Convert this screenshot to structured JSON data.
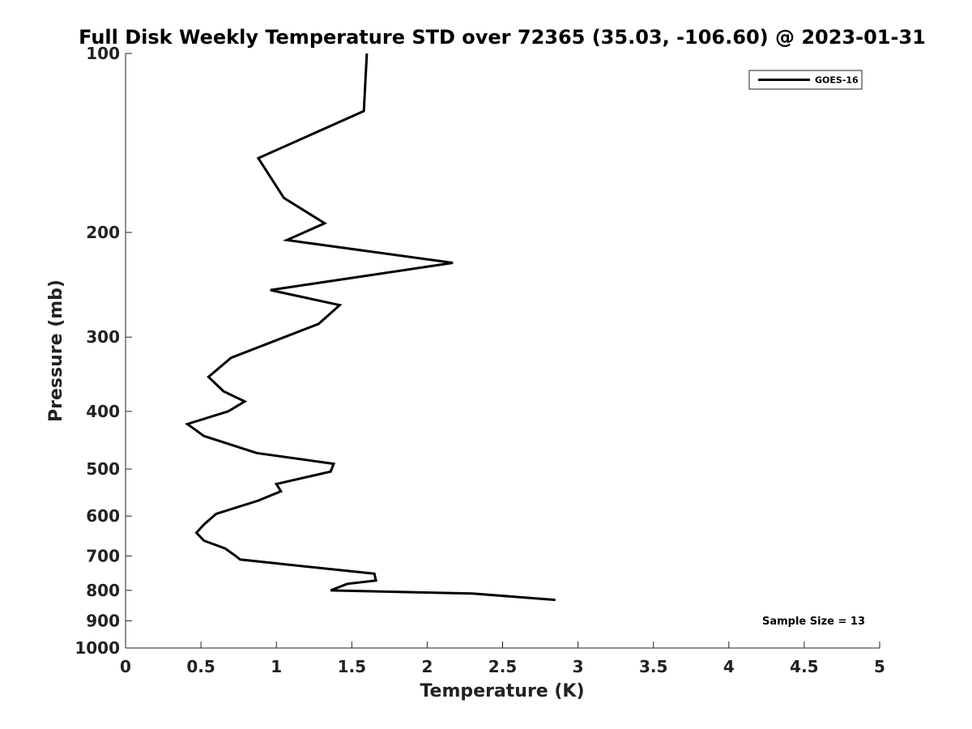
{
  "chart_data": {
    "type": "line",
    "title": "Full Disk Weekly Temperature STD over 72365 (35.03, -106.60) @ 2023-01-31",
    "xlabel": "Temperature (K)",
    "ylabel": "Pressure (mb)",
    "xlim": [
      0,
      5
    ],
    "ylim": [
      100,
      1000
    ],
    "y_scale": "log",
    "y_reversed": true,
    "x_ticks": [
      "0",
      "0.5",
      "1",
      "1.5",
      "2",
      "2.5",
      "3",
      "3.5",
      "4",
      "4.5",
      "5"
    ],
    "y_ticks": [
      "100",
      "200",
      "300",
      "400",
      "500",
      "600",
      "700",
      "800",
      "900",
      "1000"
    ],
    "grid": false,
    "legend": {
      "position": "top-right",
      "entries": [
        "GOES-16"
      ]
    },
    "annotation": "Sample Size = 13",
    "series": [
      {
        "name": "GOES-16",
        "color": "#000000",
        "points": [
          [
            1.6,
            100
          ],
          [
            1.58,
            125
          ],
          [
            0.88,
            150
          ],
          [
            1.05,
            175
          ],
          [
            1.32,
            193
          ],
          [
            1.07,
            206
          ],
          [
            2.17,
            225
          ],
          [
            0.96,
            250
          ],
          [
            1.42,
            265
          ],
          [
            1.28,
            285
          ],
          [
            0.7,
            325
          ],
          [
            0.55,
            350
          ],
          [
            0.65,
            370
          ],
          [
            0.79,
            385
          ],
          [
            0.68,
            400
          ],
          [
            0.41,
            420
          ],
          [
            0.52,
            440
          ],
          [
            0.87,
            470
          ],
          [
            1.38,
            490
          ],
          [
            1.36,
            505
          ],
          [
            1.0,
            530
          ],
          [
            1.03,
            545
          ],
          [
            0.88,
            565
          ],
          [
            0.6,
            595
          ],
          [
            0.52,
            620
          ],
          [
            0.47,
            640
          ],
          [
            0.52,
            660
          ],
          [
            0.66,
            680
          ],
          [
            0.73,
            700
          ],
          [
            0.76,
            710
          ],
          [
            1.65,
            750
          ],
          [
            1.66,
            770
          ],
          [
            1.47,
            780
          ],
          [
            1.36,
            800
          ],
          [
            2.3,
            810
          ],
          [
            2.85,
            830
          ]
        ]
      }
    ]
  }
}
